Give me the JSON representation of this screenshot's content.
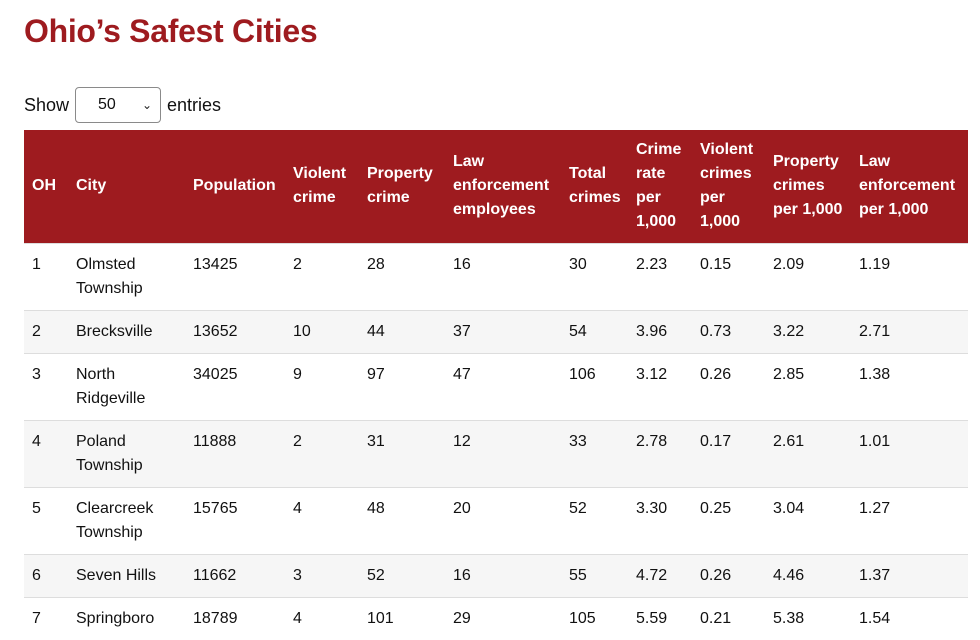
{
  "page": {
    "title": "Ohio’s Safest Cities"
  },
  "length_menu": {
    "show_label": "Show",
    "selected": "50",
    "entries_label": "entries"
  },
  "table": {
    "headers": [
      "OH",
      "City",
      "Population",
      "Violent crime",
      "Property crime",
      "Law enforcement employees",
      "Total crimes",
      "Crime rate per 1,000",
      "Violent crimes per 1,000",
      "Property crimes per 1,000",
      "Law enforcement per 1,000"
    ],
    "rows": [
      [
        "1",
        "Olmsted Township",
        "13425",
        "2",
        "28",
        "16",
        "30",
        "2.23",
        "0.15",
        "2.09",
        "1.19"
      ],
      [
        "2",
        "Brecksville",
        "13652",
        "10",
        "44",
        "37",
        "54",
        "3.96",
        "0.73",
        "3.22",
        "2.71"
      ],
      [
        "3",
        "North Ridgeville",
        "34025",
        "9",
        "97",
        "47",
        "106",
        "3.12",
        "0.26",
        "2.85",
        "1.38"
      ],
      [
        "4",
        "Poland Township",
        "11888",
        "2",
        "31",
        "12",
        "33",
        "2.78",
        "0.17",
        "2.61",
        "1.01"
      ],
      [
        "5",
        "Clearcreek Township",
        "15765",
        "4",
        "48",
        "20",
        "52",
        "3.30",
        "0.25",
        "3.04",
        "1.27"
      ],
      [
        "6",
        "Seven Hills",
        "11662",
        "3",
        "52",
        "16",
        "55",
        "4.72",
        "0.26",
        "4.46",
        "1.37"
      ],
      [
        "7",
        "Springboro",
        "18789",
        "4",
        "101",
        "29",
        "105",
        "5.59",
        "0.21",
        "5.38",
        "1.54"
      ]
    ]
  },
  "colors": {
    "accent": "#9e1b1f",
    "stripe": "#f6f6f6",
    "border": "#dddddd"
  },
  "icons": {
    "select_arrow": "chevron-down-icon"
  }
}
